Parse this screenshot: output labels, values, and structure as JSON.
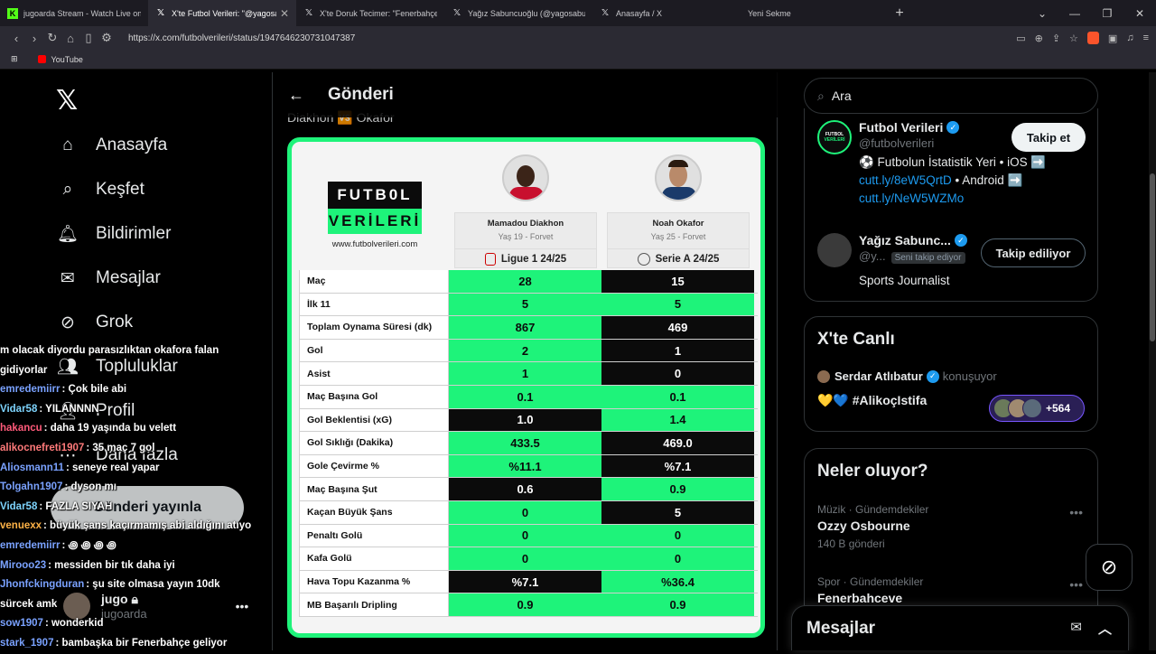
{
  "browser": {
    "tabs": [
      {
        "icon": "kick-icon",
        "title": "jugoarda Stream - Watch Live on Kick",
        "active": false
      },
      {
        "icon": "x-icon",
        "title": "X'te Futbol Verileri: \"@yagosabu",
        "active": true
      },
      {
        "icon": "x-icon",
        "title": "X'te Doruk Tecimer: \"Fenerbahçe'ye d",
        "active": false
      },
      {
        "icon": "x-icon",
        "title": "Yağız Sabuncuoğlu (@yagosabuncuo",
        "active": false
      },
      {
        "icon": "x-icon",
        "title": "Anasayfa / X",
        "active": false
      },
      {
        "icon": "",
        "title": "Yeni Sekme",
        "active": false
      }
    ],
    "url": "https://x.com/futbolverileri/status/1947646230731047387",
    "bookmark": "YouTube"
  },
  "nav": {
    "items": [
      {
        "label": "Anasayfa",
        "icon": "home-icon"
      },
      {
        "label": "Keşfet",
        "icon": "search-icon"
      },
      {
        "label": "Bildirimler",
        "icon": "bell-icon"
      },
      {
        "label": "Mesajlar",
        "icon": "mail-icon"
      },
      {
        "label": "Grok",
        "icon": "grok-icon"
      },
      {
        "label": "Topluluklar",
        "icon": "people-icon"
      },
      {
        "label": "Profil",
        "icon": "person-icon"
      },
      {
        "label": "Daha fazla",
        "icon": "more-icon"
      }
    ],
    "post_button": "Gönderi yayınla",
    "profile_name": "jugo",
    "profile_handle": "jugoarda"
  },
  "chat": [
    {
      "user": "",
      "color": "#ffffff",
      "text": "m olacak diyordu parasızlıktan okafora falan"
    },
    {
      "user": "",
      "color": "#ffffff",
      "text": "gidiyorlar"
    },
    {
      "user": "emredemiirr",
      "color": "#7aa2ff",
      "text": ": Çok bile abi"
    },
    {
      "user": "Vidar58",
      "color": "#7dd3fc",
      "text": ": YILANNNN"
    },
    {
      "user": "hakancu",
      "color": "#ff5a7a",
      "text": ": daha 19 yaşında bu velett"
    },
    {
      "user": "alikocnefreti1907",
      "color": "#ff7a7a",
      "text": ": 35 maç 7 gol"
    },
    {
      "user": "Aliosmann11",
      "color": "#7aa2ff",
      "text": ": seneye real yapar"
    },
    {
      "user": "Tolgahn1907",
      "color": "#7aa2ff",
      "text": ": dyson mı"
    },
    {
      "user": "Vidar58",
      "color": "#7dd3fc",
      "text": ": FAZLA SIYAH"
    },
    {
      "user": "venuexx",
      "color": "#ffb347",
      "text": ": büyük şans kaçırmamış abi aldığını atıyo"
    },
    {
      "user": "emredemiirr",
      "color": "#7aa2ff",
      "text": ": ꩜ ꩜ ꩜ ꩜"
    },
    {
      "user": "Mirooo23",
      "color": "#7aa2ff",
      "text": ": messiden bir tık daha iyi"
    },
    {
      "user": "Jhonfckingduran",
      "color": "#7aa2ff",
      "text": ": şu site olmasa yayın 10dk"
    },
    {
      "user": "",
      "color": "#ffffff",
      "text": "sürcek amk"
    },
    {
      "user": "sow1907",
      "color": "#7aa2ff",
      "text": ": wonderkid"
    },
    {
      "user": "stark_1907",
      "color": "#7aa2ff",
      "text": ": bambaşka bir Fenerbahçe geliyor"
    }
  ],
  "post": {
    "header": "Gönderi",
    "caption": "Diakhon 🆚 Okafor",
    "card": {
      "brand_top": "FUTB0L",
      "brand_bottom": "VERİLERİ",
      "site": "www.futbolverileri.com",
      "players": [
        {
          "name": "Mamadou Diakhon",
          "meta": "Yaş 19  -  Forvet",
          "league": "Ligue 1 24/25"
        },
        {
          "name": "Noah Okafor",
          "meta": "Yaş 25  -  Forvet",
          "league": "Serie A 24/25"
        }
      ],
      "rows": [
        {
          "label": "Maç",
          "a": "28",
          "b": "15",
          "win": "a"
        },
        {
          "label": "İlk 11",
          "a": "5",
          "b": "5",
          "win": "both"
        },
        {
          "label": "Toplam Oynama Süresi (dk)",
          "a": "867",
          "b": "469",
          "win": "a"
        },
        {
          "label": "Gol",
          "a": "2",
          "b": "1",
          "win": "a"
        },
        {
          "label": "Asist",
          "a": "1",
          "b": "0",
          "win": "a"
        },
        {
          "label": "Maç Başına Gol",
          "a": "0.1",
          "b": "0.1",
          "win": "both"
        },
        {
          "label": "Gol Beklentisi (xG)",
          "a": "1.0",
          "b": "1.4",
          "win": "b"
        },
        {
          "label": "Gol Sıklığı (Dakika)",
          "a": "433.5",
          "b": "469.0",
          "win": "a"
        },
        {
          "label": "Gole Çevirme %",
          "a": "%11.1",
          "b": "%7.1",
          "win": "a"
        },
        {
          "label": "Maç Başına Şut",
          "a": "0.6",
          "b": "0.9",
          "win": "b"
        },
        {
          "label": "Kaçan Büyük Şans",
          "a": "0",
          "b": "5",
          "win": "a"
        },
        {
          "label": "Penaltı Golü",
          "a": "0",
          "b": "0",
          "win": "both"
        },
        {
          "label": "Kafa Golü",
          "a": "0",
          "b": "0",
          "win": "both"
        },
        {
          "label": "Hava Topu Kazanma %",
          "a": "%7.1",
          "b": "%36.4",
          "win": "b"
        },
        {
          "label": "MB Başarılı Dripling",
          "a": "0.9",
          "b": "0.9",
          "win": "both"
        }
      ]
    }
  },
  "sidebar": {
    "search_placeholder": "Ara",
    "accounts": [
      {
        "name": "Futbol Verileri",
        "handle": "@futbolverileri",
        "button": "Takip et",
        "bio_prefix": "⚽ Futbolun İstatistik Yeri • iOS ➡️",
        "link1": "cutt.ly/8eW5QrtD",
        "bio_mid": " • Android ➡️",
        "link2": "cutt.ly/NeW5WZMo"
      },
      {
        "name": "Yağız Sabunc...",
        "handle": "@y...",
        "tag": "Seni takip ediyor",
        "button": "Takip ediliyor",
        "bio": "Sports Journalist"
      }
    ],
    "live": {
      "title": "X'te Canlı",
      "host": "Serdar Atlıbatur",
      "status": "konuşuyor",
      "space": "💛💙 #AlikoçIstifa",
      "listeners": "+564"
    },
    "trends": {
      "title": "Neler oluyor?",
      "items": [
        {
          "category": "Müzik · Gündemdekiler",
          "title": "Ozzy Osbourne",
          "count": "140 B gönderi"
        },
        {
          "category": "Spor · Gündemdekiler",
          "title": "Fenerbahceve",
          "count": ""
        }
      ]
    },
    "messages_label": "Mesajlar"
  },
  "colors": {
    "accent": "#1d9bf0",
    "card_green": "#1ef37a",
    "card_dark": "#0b0b0b"
  }
}
